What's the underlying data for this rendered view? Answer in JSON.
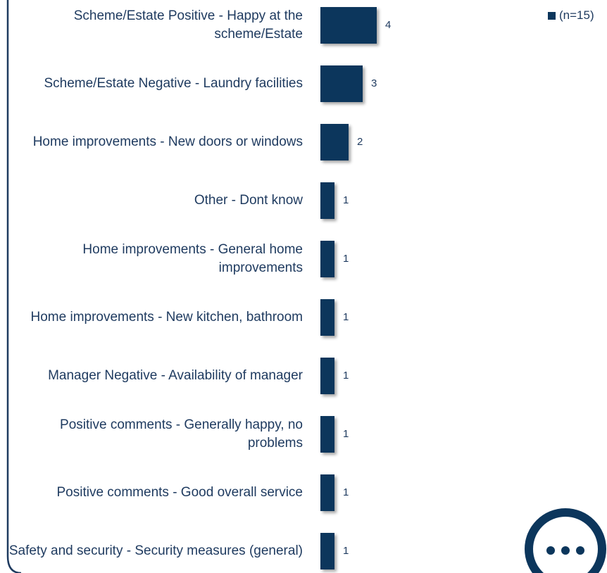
{
  "chart_data": {
    "type": "bar",
    "orientation": "horizontal",
    "categories": [
      "Scheme/Estate Positive - Happy at the scheme/Estate",
      "Scheme/Estate Negative - Laundry facilities",
      "Home improvements - New doors or windows",
      "Other - Dont know",
      "Home improvements - General home improvements",
      "Home improvements - New kitchen, bathroom",
      "Manager Negative - Availability of manager",
      "Positive comments - Generally happy, no problems",
      "Positive comments - Good overall service",
      "Safety and security - Security measures (general)"
    ],
    "series": [
      {
        "name": "(n=15)",
        "color": "#0c365c",
        "values": [
          4,
          3,
          2,
          1,
          1,
          1,
          1,
          1,
          1,
          1
        ]
      }
    ],
    "legend": "top-right"
  }
}
